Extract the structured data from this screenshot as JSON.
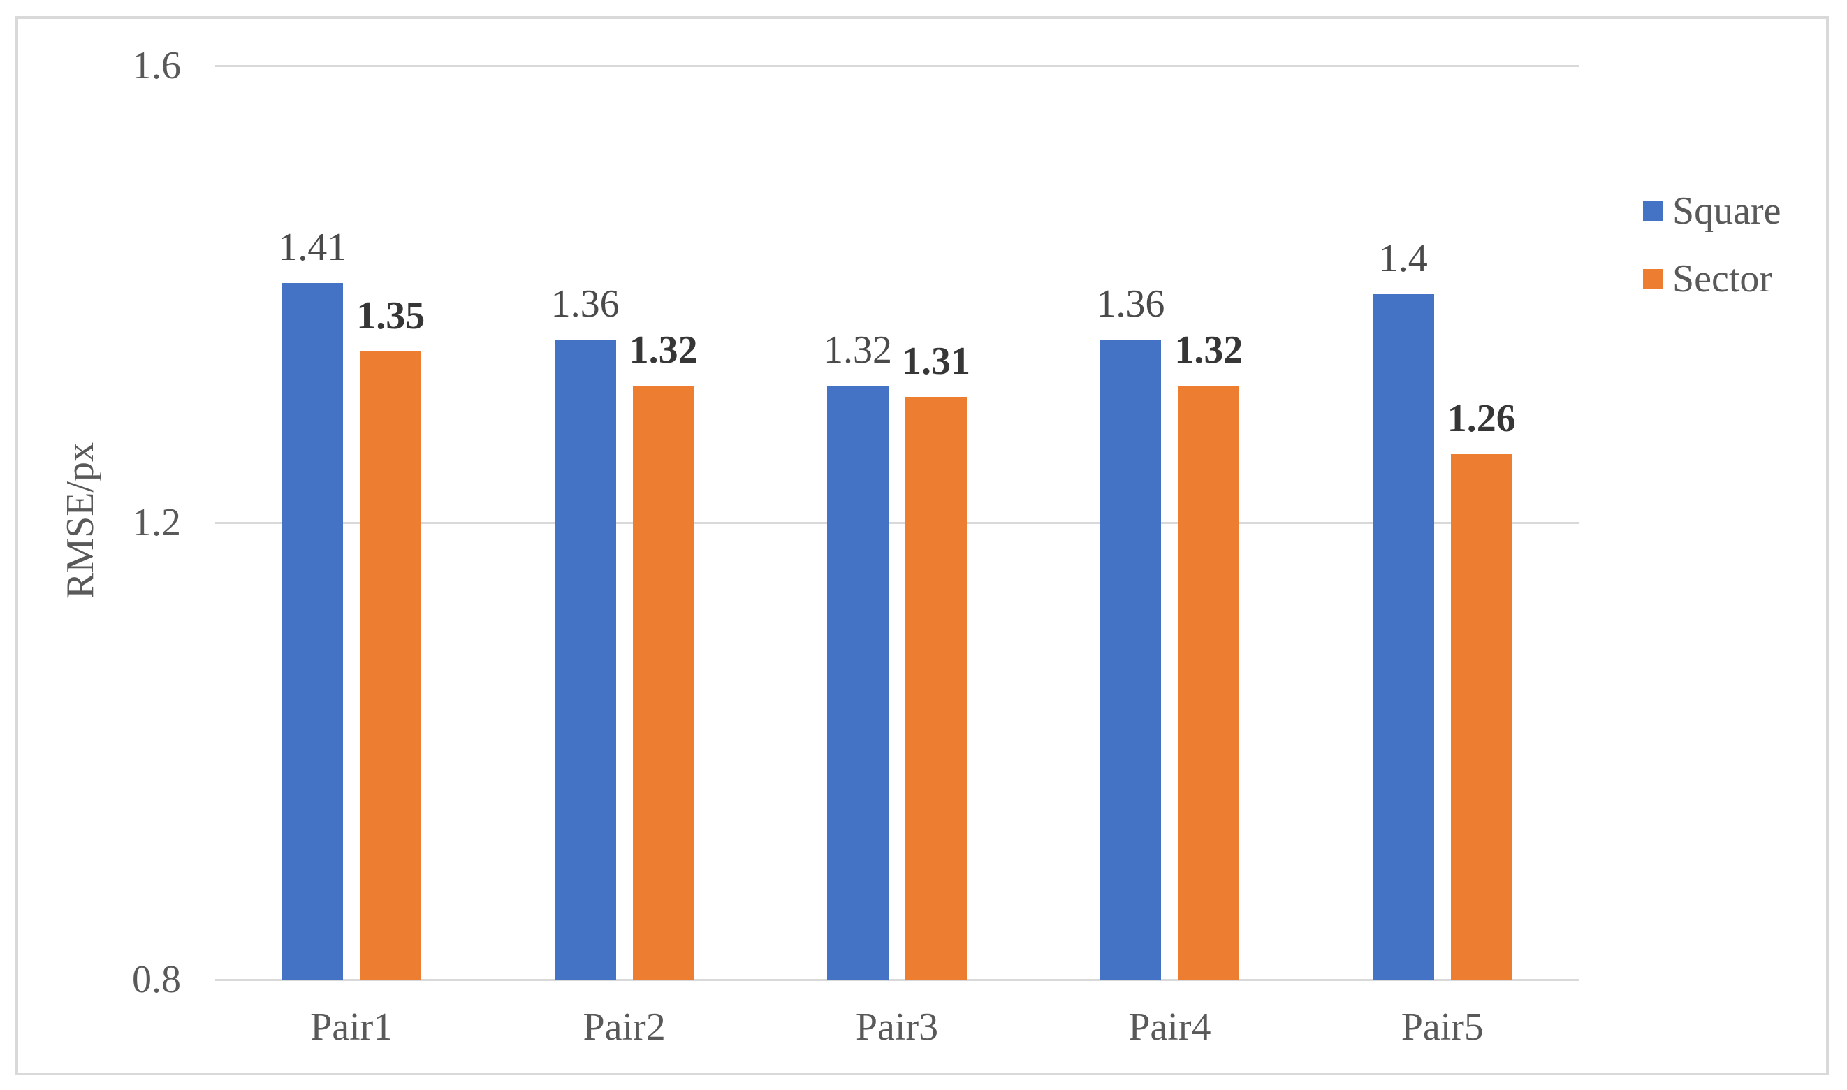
{
  "chart_data": {
    "type": "bar",
    "categories": [
      "Pair1",
      "Pair2",
      "Pair3",
      "Pair4",
      "Pair5"
    ],
    "series": [
      {
        "name": "Square",
        "color": "#4472C4",
        "values": [
          1.41,
          1.36,
          1.32,
          1.36,
          1.4
        ],
        "labels": [
          "1.41",
          "1.36",
          "1.32",
          "1.36",
          "1.4"
        ],
        "bold_labels": false
      },
      {
        "name": "Sector",
        "color": "#ED7D31",
        "values": [
          1.35,
          1.32,
          1.31,
          1.32,
          1.26
        ],
        "labels": [
          "1.35",
          "1.32",
          "1.31",
          "1.32",
          "1.26"
        ],
        "bold_labels": true
      }
    ],
    "ylabel": "RMSE/px",
    "ylim": [
      0.8,
      1.6
    ],
    "yticks": [
      0.8,
      1.2,
      1.6
    ],
    "ytick_labels": [
      "0.8",
      "1.2",
      "1.6"
    ],
    "grid": true,
    "legend_position": "right"
  },
  "style": {
    "background": "#FFFFFF",
    "frame_border_color": "#D9D9D9",
    "gridline_color": "#D9D9D9",
    "axis_text_color": "#595959",
    "data_label_color": "#4A4A4A",
    "data_label_bold_color": "#363636"
  }
}
